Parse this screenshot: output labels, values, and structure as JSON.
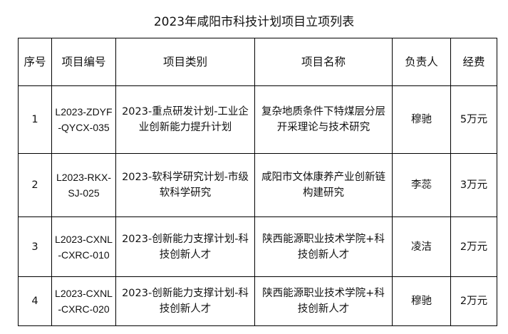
{
  "title": "2023年咸阳市科技计划项目立项列表",
  "headers": [
    "序号",
    "项目编号",
    "项目类别",
    "项目名称",
    "负责人",
    "经费"
  ],
  "rows": [
    {
      "seq": "1",
      "code": "L2023-ZDYF-QYCX-035",
      "category": "2023-重点研发计划-工业企业创新能力提升计划",
      "name": "复杂地质条件下特煤层分层开采理论与技术研究",
      "leader": "穆驰",
      "funding": "5万元"
    },
    {
      "seq": "2",
      "code": "L2023-RKX-SJ-025",
      "category": "2023-软科学研究计划-市级软科学研究",
      "name": "咸阳市文体康养产业创新链构建研究",
      "leader": "李蕊",
      "funding": "3万元"
    },
    {
      "seq": "3",
      "code": "L2023-CXNL-CXRC-010",
      "category": "2023-创新能力支撑计划-科技创新人才",
      "name": "陕西能源职业技术学院+科技创新人才",
      "leader": "凌洁",
      "funding": "2万元"
    },
    {
      "seq": "4",
      "code": "L2023-CXNL-CXRC-020",
      "category": "2023-创新能力支撑计划-科技创新人才",
      "name": "陕西能源职业技术学院+科技创新人才",
      "leader": "穆驰",
      "funding": "2万元"
    }
  ]
}
